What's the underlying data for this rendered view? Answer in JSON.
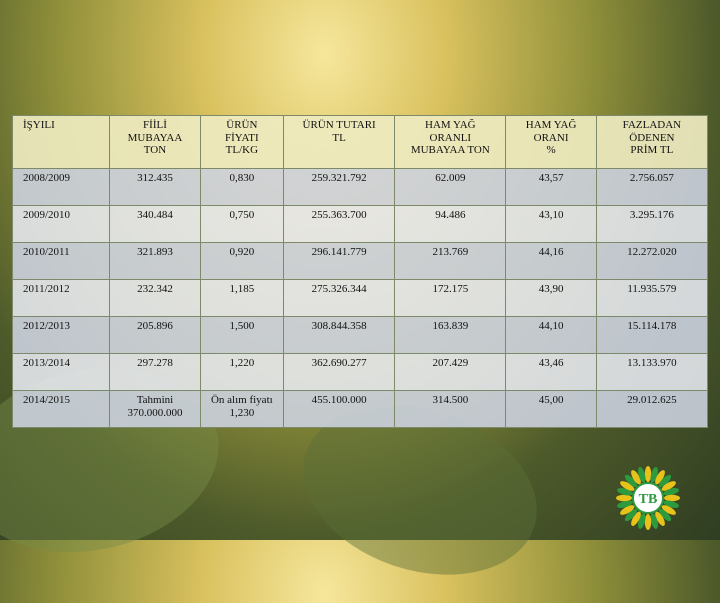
{
  "table": {
    "headers": [
      "İŞYILI",
      "FİİLİ\nMUBAYAA\nTON",
      "ÜRÜN\nFİYATI\nTL/KG",
      "ÜRÜN TUTARI\nTL",
      "HAM YAĞ\nORANLI\nMUBAYAA TON",
      "HAM YAĞ\nORANI\n%",
      "FAZLADAN\nÖDENEN\nPRİM TL"
    ],
    "rows": [
      [
        "2008/2009",
        "312.435",
        "0,830",
        "259.321.792",
        "62.009",
        "43,57",
        "2.756.057"
      ],
      [
        "2009/2010",
        "340.484",
        "0,750",
        "255.363.700",
        "94.486",
        "43,10",
        "3.295.176"
      ],
      [
        "2010/2011",
        "321.893",
        "0,920",
        "296.141.779",
        "213.769",
        "44,16",
        "12.272.020"
      ],
      [
        "2011/2012",
        "232.342",
        "1,185",
        "275.326.344",
        "172.175",
        "43,90",
        "11.935.579"
      ],
      [
        "2012/2013",
        "205.896",
        "1,500",
        "308.844.358",
        "163.839",
        "44,10",
        "15.114.178"
      ],
      [
        "2013/2014",
        "297.278",
        "1,220",
        "362.690.277",
        "207.429",
        "43,46",
        "13.133.970"
      ],
      [
        "2014/2015",
        "Tahmini\n370.000.000",
        "Ön alım fiyatı\n1,230",
        "455.100.000",
        "314.500",
        "45,00",
        "29.012.625"
      ]
    ]
  },
  "logo": {
    "text": "TB",
    "colors": {
      "green": "#2e9a3e",
      "yellow": "#e8c21a"
    }
  }
}
